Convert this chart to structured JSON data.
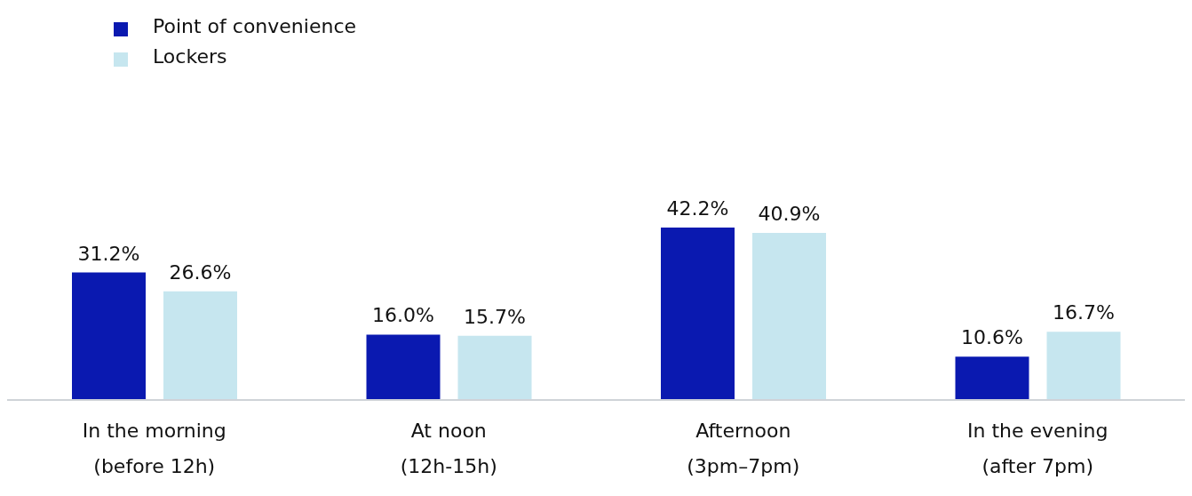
{
  "chart_data": {
    "type": "bar",
    "categories": [
      "In the morning\n(before 12h)",
      "At noon\n(12h-15h)",
      "Afternoon\n(3pm–7pm)",
      "In the evening\n(after 7pm)"
    ],
    "series": [
      {
        "name": "Point of convenience",
        "color": "#0a19b0",
        "values": [
          31.2,
          16.0,
          42.2,
          10.6
        ],
        "value_labels": [
          "31.2%",
          "16.0%",
          "42.2%",
          "10.6%"
        ]
      },
      {
        "name": "Lockers",
        "color": "#c6e6ef",
        "values": [
          26.6,
          15.7,
          40.9,
          16.7
        ],
        "value_labels": [
          "26.6%",
          "15.7%",
          "40.9%",
          "16.7%"
        ]
      }
    ],
    "legend": "top left",
    "grid": false
  }
}
